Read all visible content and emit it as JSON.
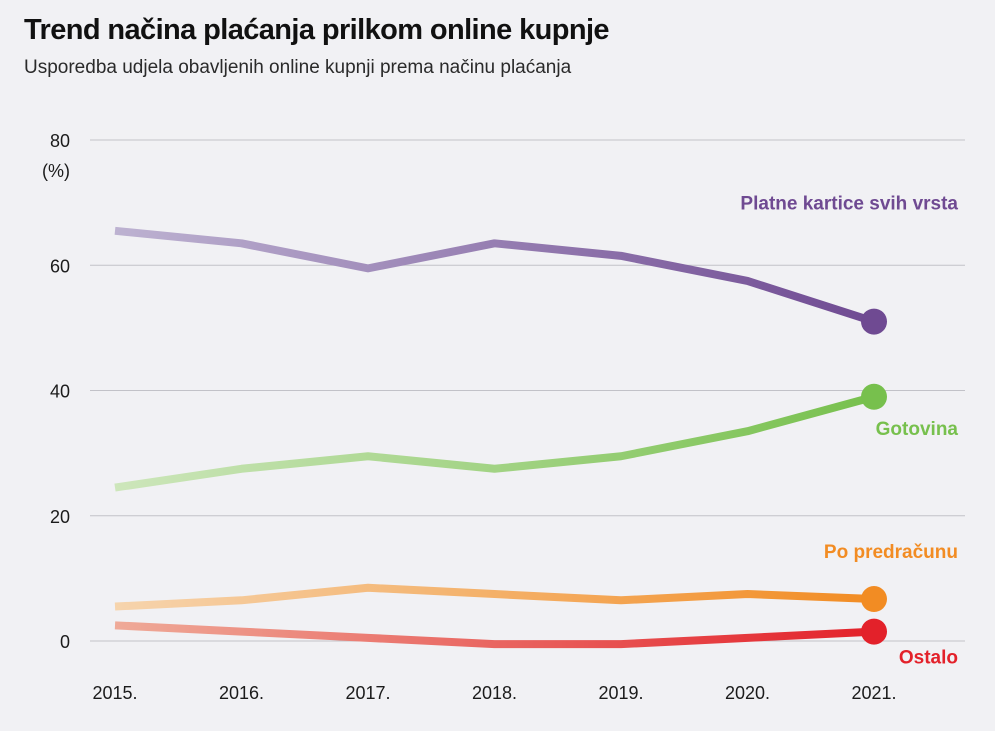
{
  "title": "Trend načina plaćanja prilkom online kupnje",
  "subtitle": "Usporedba udjela obavljenih online kupnji prema načinu plaćanja",
  "chart_data": {
    "type": "line",
    "title": "Trend načina plaćanja prilkom online kupnje",
    "subtitle": "Usporedba udjela obavljenih online kupnji prema načinu plaćanja",
    "xlabel": "",
    "ylabel": "(%)",
    "unit_label": "(%)",
    "x": [
      "2015.",
      "2016.",
      "2017.",
      "2018.",
      "2019.",
      "2020.",
      "2021."
    ],
    "ylim": [
      0,
      80
    ],
    "yticks": [
      0,
      20,
      40,
      60,
      80
    ],
    "grid": true,
    "legend": "direct labels at line ends (right)",
    "series": [
      {
        "name": "Platne kartice svih vrsta",
        "color": "#6f4a92",
        "start_color": "#bdb2d1",
        "values": [
          65.5,
          63.5,
          59.5,
          63.5,
          61.5,
          57.5,
          51
        ]
      },
      {
        "name": "Gotovina",
        "color": "#77c04d",
        "start_color": "#cde6bb",
        "values": [
          24.5,
          27.5,
          29.5,
          27.5,
          29.5,
          33.5,
          39
        ]
      },
      {
        "name": "Po predračunu",
        "color": "#f28c23",
        "start_color": "#f6d4ad",
        "values": [
          5.5,
          6.5,
          8.5,
          7.5,
          6.5,
          7.5,
          6.7
        ]
      },
      {
        "name": "Ostalo",
        "color": "#e3212a",
        "start_color": "#efaa98",
        "values": [
          2.5,
          1.5,
          0.5,
          -0.5,
          -0.5,
          0.5,
          1.5
        ]
      }
    ]
  }
}
